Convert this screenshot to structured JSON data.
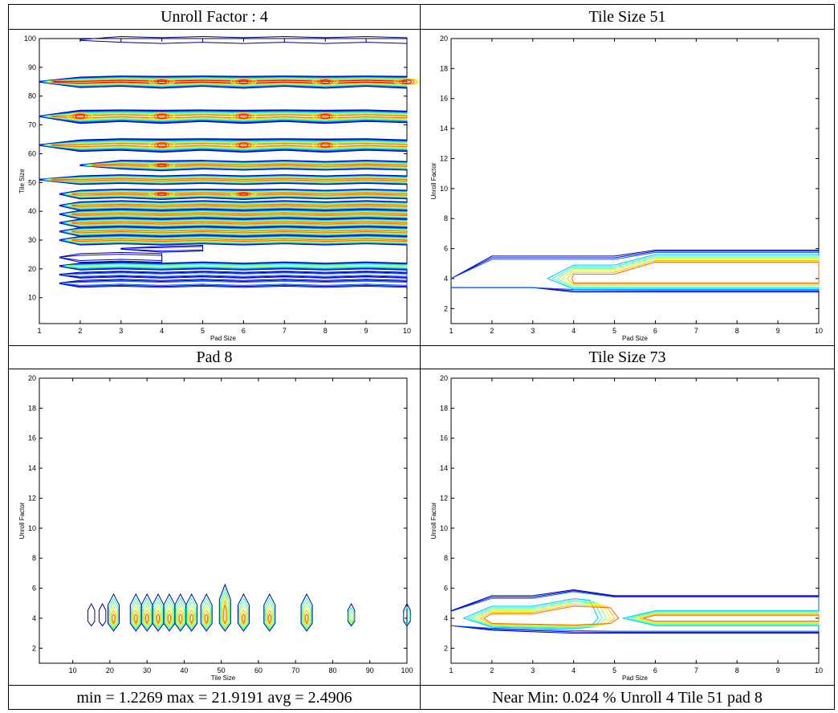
{
  "headers": {
    "top_left": "Unroll Factor : 4",
    "top_right": "Tile Size 51",
    "bottom_left": "Pad 8",
    "bottom_right": "Tile Size 73"
  },
  "footers": {
    "left": "min = 1.2269 max = 21.9191 avg = 2.4906",
    "right": "Near Min: 0.024 % Unroll 4 Tile 51 pad 8"
  },
  "colors": {
    "levels": [
      "#00008f",
      "#0000ff",
      "#0060ff",
      "#00bfff",
      "#20ffdf",
      "#7fff7f",
      "#dfff20",
      "#ffbf00",
      "#ff6000",
      "#ff0000",
      "#8f0000"
    ]
  },
  "chart_data": [
    {
      "type": "contour",
      "title": "Unroll Factor : 4",
      "xlabel": "Pad Size",
      "ylabel": "Tile Size",
      "xlim": [
        1,
        10
      ],
      "ylim": [
        1,
        100
      ],
      "xticks": [
        1,
        2,
        3,
        4,
        5,
        6,
        7,
        8,
        9,
        10
      ],
      "yticks": [
        10,
        20,
        30,
        40,
        50,
        60,
        70,
        80,
        90,
        100
      ],
      "bands": [
        {
          "y": 15,
          "x0": 1.5,
          "x1": 10,
          "w": 1.2,
          "levels": 3
        },
        {
          "y": 18,
          "x0": 1.5,
          "x1": 10,
          "w": 1.0,
          "levels": 3
        },
        {
          "y": 21,
          "x0": 1.5,
          "x1": 10,
          "w": 1.2,
          "levels": 6
        },
        {
          "y": 24,
          "x0": 1.5,
          "x1": 4,
          "w": 1.5,
          "levels": 2
        },
        {
          "y": 27,
          "x0": 3,
          "x1": 5,
          "w": 1.0,
          "levels": 2
        },
        {
          "y": 30,
          "x0": 1.5,
          "x1": 10,
          "w": 1.5,
          "levels": 9
        },
        {
          "y": 33,
          "x0": 1.5,
          "x1": 10,
          "w": 1.5,
          "levels": 9
        },
        {
          "y": 36,
          "x0": 1.5,
          "x1": 10,
          "w": 1.5,
          "levels": 9
        },
        {
          "y": 39,
          "x0": 1.5,
          "x1": 10,
          "w": 1.5,
          "levels": 9
        },
        {
          "y": 42,
          "x0": 1.5,
          "x1": 10,
          "w": 1.5,
          "levels": 9
        },
        {
          "y": 46,
          "x0": 1.5,
          "x1": 10,
          "w": 1.5,
          "levels": 9,
          "hot": [
            4,
            6
          ]
        },
        {
          "y": 51,
          "x0": 1,
          "x1": 10,
          "w": 1.5,
          "levels": 9
        },
        {
          "y": 56,
          "x0": 2,
          "x1": 10,
          "w": 1.5,
          "levels": 9,
          "hot": [
            4
          ]
        },
        {
          "y": 63,
          "x0": 1,
          "x1": 10,
          "w": 2.0,
          "levels": 9,
          "hot": [
            4,
            6,
            8
          ]
        },
        {
          "y": 73,
          "x0": 1,
          "x1": 10,
          "w": 2.0,
          "levels": 9,
          "hot": [
            2,
            4,
            6,
            8
          ]
        },
        {
          "y": 85,
          "x0": 1,
          "x1": 10,
          "w": 1.8,
          "levels": 10,
          "hot": [
            4,
            6,
            8,
            10
          ]
        },
        {
          "y": 99.5,
          "x0": 2,
          "x1": 10,
          "w": 1.0,
          "levels": 1
        }
      ]
    },
    {
      "type": "contour",
      "title": "Tile Size 51",
      "xlabel": "Pad Size",
      "ylabel": "Unroll Factor",
      "xlim": [
        1,
        10
      ],
      "ylim": [
        1,
        20
      ],
      "xticks": [
        1,
        2,
        3,
        4,
        5,
        6,
        7,
        8,
        9,
        10
      ],
      "yticks": [
        2,
        4,
        6,
        8,
        10,
        12,
        14,
        16,
        18,
        20
      ]
    },
    {
      "type": "contour",
      "title": "Pad 8",
      "xlabel": "Tile Size",
      "ylabel": "Unroll Factor",
      "xlim": [
        1,
        100
      ],
      "ylim": [
        1,
        20
      ],
      "xticks": [
        10,
        20,
        30,
        40,
        50,
        60,
        70,
        80,
        90,
        100
      ],
      "yticks": [
        2,
        4,
        6,
        8,
        10,
        12,
        14,
        16,
        18,
        20
      ],
      "blobs": [
        15,
        18,
        21,
        27,
        30,
        33,
        36,
        39,
        42,
        46,
        51,
        56,
        63,
        73,
        85,
        100
      ]
    },
    {
      "type": "contour",
      "title": "Tile Size 73",
      "xlabel": "Pad Size",
      "ylabel": "Unroll Factor",
      "xlim": [
        1,
        10
      ],
      "ylim": [
        1,
        20
      ],
      "xticks": [
        1,
        2,
        3,
        4,
        5,
        6,
        7,
        8,
        9,
        10
      ],
      "yticks": [
        2,
        4,
        6,
        8,
        10,
        12,
        14,
        16,
        18,
        20
      ]
    }
  ]
}
